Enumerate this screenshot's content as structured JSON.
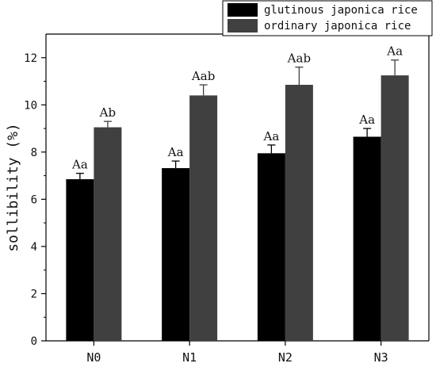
{
  "chart_data": {
    "type": "bar",
    "ylabel": "sollibility (%)",
    "xlabel": "",
    "ylim": [
      0,
      13
    ],
    "yticks": [
      0,
      2,
      4,
      6,
      8,
      10,
      12
    ],
    "categories": [
      "N0",
      "N1",
      "N2",
      "N3"
    ],
    "series": [
      {
        "name": "glutinous japonica rice",
        "color": "#000000",
        "values": [
          6.85,
          7.32,
          7.95,
          8.65
        ],
        "errors": [
          0.25,
          0.3,
          0.35,
          0.35
        ],
        "labels": [
          "Aa",
          "Aa",
          "Aa",
          "Aa"
        ]
      },
      {
        "name": "ordinary japonica rice",
        "color": "#404040",
        "values": [
          9.05,
          10.4,
          10.85,
          11.25
        ],
        "errors": [
          0.25,
          0.45,
          0.75,
          0.65
        ],
        "labels": [
          "Ab",
          "Aab",
          "Aab",
          "Aa"
        ]
      }
    ],
    "legend_position": "top-right",
    "grid": false
  }
}
